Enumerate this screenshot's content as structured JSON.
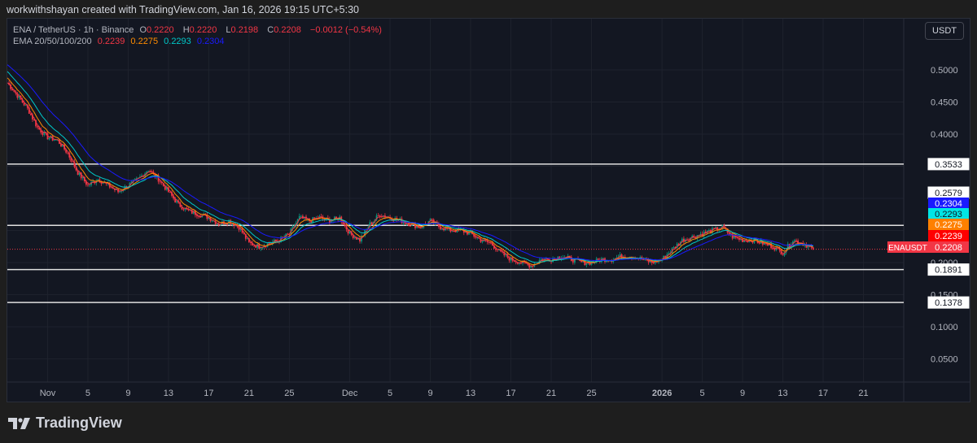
{
  "credit": "workwithshayan created with TradingView.com, Jan 16, 2026 19:15 UTC+5:30",
  "legend": {
    "symbol": "ENA / TetherUS · 1h · Binance",
    "o_label": "O",
    "o": "0.2220",
    "h_label": "H",
    "h": "0.2220",
    "l_label": "L",
    "l": "0.2198",
    "c_label": "C",
    "c": "0.2208",
    "change": "−0.0012 (−0.54%)",
    "ema_label": "EMA 20/50/100/200",
    "ema": [
      {
        "value": "0.2239",
        "color": "#f23645"
      },
      {
        "value": "0.2275",
        "color": "#ff8c00"
      },
      {
        "value": "0.2293",
        "color": "#00c8c8"
      },
      {
        "value": "0.2304",
        "color": "#1a1aff"
      }
    ]
  },
  "currency_button": "USDT",
  "logo_text": "TradingView",
  "chart_data": {
    "type": "candlestick",
    "interval": "1h (approximated daily)",
    "x": [
      "2025-10-28",
      "2025-10-29",
      "2025-10-30",
      "2025-10-31",
      "2025-11-01",
      "2025-11-02",
      "2025-11-03",
      "2025-11-04",
      "2025-11-05",
      "2025-11-06",
      "2025-11-07",
      "2025-11-08",
      "2025-11-09",
      "2025-11-10",
      "2025-11-11",
      "2025-11-12",
      "2025-11-13",
      "2025-11-14",
      "2025-11-15",
      "2025-11-16",
      "2025-11-17",
      "2025-11-18",
      "2025-11-19",
      "2025-11-20",
      "2025-11-21",
      "2025-11-22",
      "2025-11-23",
      "2025-11-24",
      "2025-11-25",
      "2025-11-26",
      "2025-11-27",
      "2025-11-28",
      "2025-11-29",
      "2025-11-30",
      "2025-12-01",
      "2025-12-02",
      "2025-12-03",
      "2025-12-04",
      "2025-12-05",
      "2025-12-06",
      "2025-12-07",
      "2025-12-08",
      "2025-12-09",
      "2025-12-10",
      "2025-12-11",
      "2025-12-12",
      "2025-12-13",
      "2025-12-14",
      "2025-12-15",
      "2025-12-16",
      "2025-12-17",
      "2025-12-18",
      "2025-12-19",
      "2025-12-20",
      "2025-12-21",
      "2025-12-22",
      "2025-12-23",
      "2025-12-24",
      "2025-12-25",
      "2025-12-26",
      "2025-12-27",
      "2025-12-28",
      "2025-12-29",
      "2025-12-30",
      "2025-12-31",
      "2026-01-01",
      "2026-01-02",
      "2026-01-03",
      "2026-01-04",
      "2026-01-05",
      "2026-01-06",
      "2026-01-07",
      "2026-01-08",
      "2026-01-09",
      "2026-01-10",
      "2026-01-11",
      "2026-01-12",
      "2026-01-13",
      "2026-01-14",
      "2026-01-15",
      "2026-01-16"
    ],
    "close": [
      0.48,
      0.46,
      0.44,
      0.41,
      0.395,
      0.39,
      0.37,
      0.34,
      0.32,
      0.33,
      0.32,
      0.31,
      0.32,
      0.33,
      0.345,
      0.33,
      0.31,
      0.29,
      0.28,
      0.275,
      0.27,
      0.26,
      0.265,
      0.255,
      0.23,
      0.225,
      0.23,
      0.235,
      0.245,
      0.27,
      0.265,
      0.27,
      0.265,
      0.27,
      0.245,
      0.235,
      0.26,
      0.275,
      0.27,
      0.265,
      0.26,
      0.255,
      0.265,
      0.255,
      0.25,
      0.25,
      0.245,
      0.235,
      0.23,
      0.215,
      0.205,
      0.2,
      0.195,
      0.205,
      0.205,
      0.21,
      0.205,
      0.2,
      0.2,
      0.205,
      0.205,
      0.21,
      0.21,
      0.205,
      0.2,
      0.205,
      0.22,
      0.235,
      0.24,
      0.245,
      0.25,
      0.255,
      0.24,
      0.235,
      0.235,
      0.23,
      0.225,
      0.215,
      0.235,
      0.23,
      0.2208
    ],
    "ylim": [
      0,
      0.53
    ],
    "y_ticks": [
      "0.5000",
      "0.4500",
      "0.4000",
      "0.2000",
      "0.1500",
      "0.1000",
      "0.0500"
    ],
    "x_ticks": [
      {
        "label": "Nov",
        "date": "2025-11-01"
      },
      {
        "label": "5",
        "date": "2025-11-05"
      },
      {
        "label": "9",
        "date": "2025-11-09"
      },
      {
        "label": "13",
        "date": "2025-11-13"
      },
      {
        "label": "17",
        "date": "2025-11-17"
      },
      {
        "label": "21",
        "date": "2025-11-21"
      },
      {
        "label": "25",
        "date": "2025-11-25"
      },
      {
        "label": "Dec",
        "date": "2025-12-01"
      },
      {
        "label": "5",
        "date": "2025-12-05"
      },
      {
        "label": "9",
        "date": "2025-12-09"
      },
      {
        "label": "13",
        "date": "2025-12-13"
      },
      {
        "label": "17",
        "date": "2025-12-17"
      },
      {
        "label": "21",
        "date": "2025-12-21"
      },
      {
        "label": "25",
        "date": "2025-12-25"
      },
      {
        "label": "2026",
        "date": "2026-01-01"
      },
      {
        "label": "5",
        "date": "2026-01-05"
      },
      {
        "label": "9",
        "date": "2026-01-09"
      },
      {
        "label": "13",
        "date": "2026-01-13"
      },
      {
        "label": "17",
        "date": "2026-01-17"
      },
      {
        "label": "21",
        "date": "2026-01-21"
      }
    ],
    "x_end": "2026-01-25",
    "horizontal_levels": [
      "0.3533",
      "0.2579",
      "0.1891",
      "0.1378"
    ],
    "ema_periods": [
      20,
      50,
      100,
      200
    ],
    "price_labels": [
      {
        "value": "0.2579",
        "bg": "#ffffff",
        "fg": "#131722"
      },
      {
        "value": "0.2304",
        "bg": "#1a1aff",
        "fg": "#ffffff"
      },
      {
        "value": "0.2293",
        "bg": "#00e5e5",
        "fg": "#131722"
      },
      {
        "value": "0.2275",
        "bg": "#ff8000",
        "fg": "#ffffff"
      },
      {
        "value": "0.2239",
        "bg": "#ff0000",
        "fg": "#ffffff"
      },
      {
        "value": "0.2208",
        "bg": "#f23645",
        "fg": "#ffffff"
      }
    ],
    "last_price_tag": "ENAUSDT",
    "colors": {
      "up": "#089981",
      "down": "#f23645",
      "bg": "#131722"
    }
  }
}
